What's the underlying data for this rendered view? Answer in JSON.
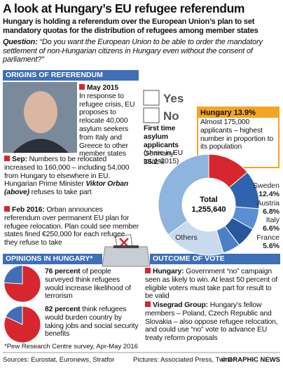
{
  "header": {
    "title": "A look at Hungary’s EU refugee referendum",
    "subtitle": "Hungary is holding a referendum over the European Union’s plan to set mandatory quotas for the distribution of refugees among member states"
  },
  "question": {
    "label": "Question:",
    "text": "“Do you want the European Union to be able to order the mandatory settlement of non-Hungarian citizens in Hungary even without the consent of parliament?”"
  },
  "origins": {
    "heading": "ORIGINS OF REFERENDUM",
    "events": [
      {
        "date": "May 2015",
        "text": "In response to refugee crisis, EU proposes to relocate 40,000 asylum seekers from Italy and Greece to other member states"
      },
      {
        "date": "Sep:",
        "text": "Numbers to be relocated increased to 160,000 – including 54,000 from Hungary to elsewhere in EU. Hungarian Prime Minister",
        "name": "Viktor Orban (above)",
        "tail": "refuses to take part"
      },
      {
        "date": "Feb 2016:",
        "text": "Orban announces referendum over permanent EU plan for refugee relocation. Plan could see member states fined €250,000 for each refugee they refuse to take"
      }
    ]
  },
  "ballot": {
    "yes": "Yes",
    "no": "No"
  },
  "chart_data": {
    "type": "donut",
    "title": "First time asylum applicants",
    "subtitle": "(share in EU total, 2015)",
    "total_label": "Total",
    "total": "1,255,640",
    "categories": [
      "Hungary",
      "Sweden",
      "Austria",
      "Italy",
      "France",
      "Others",
      "Germany"
    ],
    "values": [
      13.9,
      12.4,
      6.8,
      6.6,
      5.6,
      19.5,
      35.2
    ],
    "value_labels": [
      "13.9%",
      "12.4%",
      "6.8%",
      "6.6%",
      "5.6%",
      null,
      "35.2%"
    ],
    "colors": [
      "#d7262d",
      "#2f63ad",
      "#5a8fd2",
      "#2a569c",
      "#4c80c6",
      "#c9d9ee",
      "#8fb4de"
    ],
    "callout": "Almost 175,000 applicants – highest number in proportion to its population"
  },
  "opinions": {
    "heading": "OPINIONS IN HUNGARY*",
    "items": [
      {
        "value": 76,
        "lead": "76 percent",
        "text": "of people surveyed think refugees would increase likelihood of terrorism"
      },
      {
        "value": 82,
        "lead": "82 percent",
        "text": "think refugees would burden country by taking jobs and social security benefits"
      }
    ],
    "note": "*Pew Research Centre survey, Apr-May 2016"
  },
  "outcome": {
    "heading": "OUTCOME OF VOTE",
    "items": [
      {
        "lead": "Hungary:",
        "text": "Government “no” campaign seen as likely to win. At least 50 percent of eligible voters must take part for result to be valid"
      },
      {
        "lead": "Visegrad Group:",
        "text": "Hungary’s fellow members – Poland, Czech Republic and Slovakia – also oppose refugee relocation, and could use “no” vote to advance EU treaty reform proposals"
      }
    ]
  },
  "footer": {
    "sources": "Sources: Eurostat, Euronews, Stratfor",
    "pictures": "Pictures: Associated Press, Twitter",
    "credit": "© GRAPHIC NEWS"
  }
}
